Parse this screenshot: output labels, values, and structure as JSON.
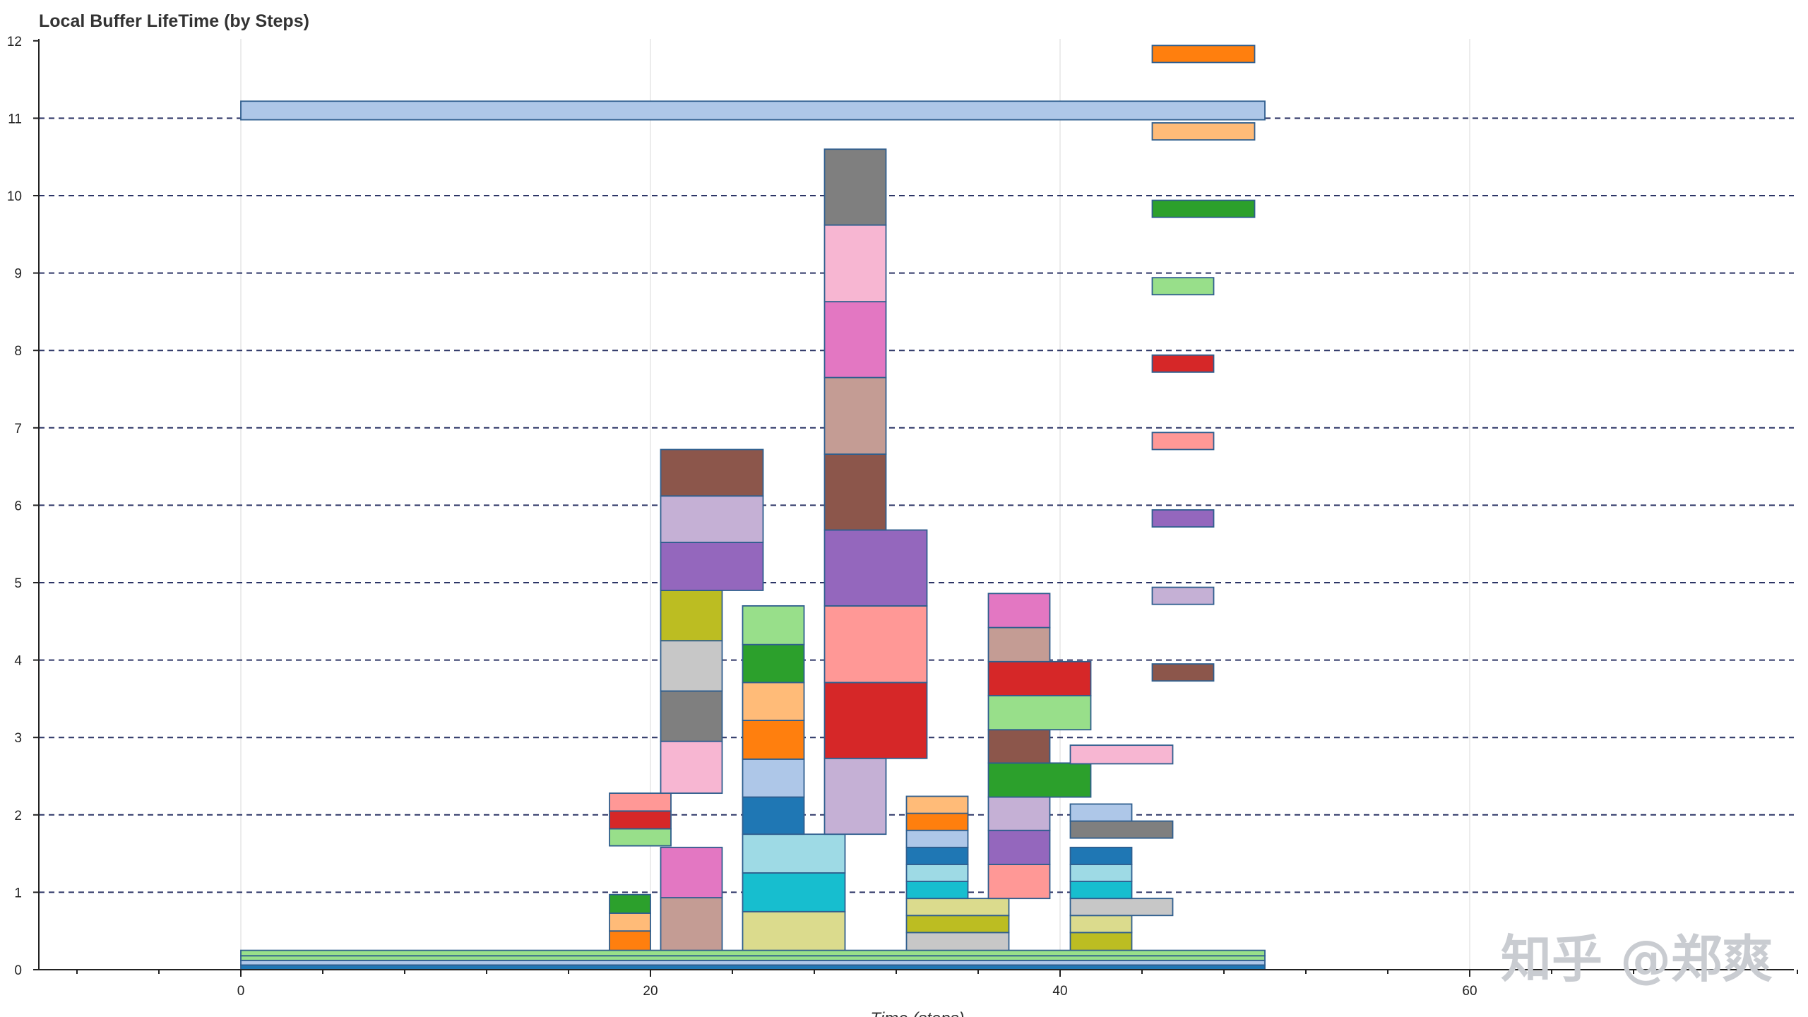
{
  "chart_data": {
    "type": "bar",
    "orientation": "horizontal-intervals",
    "title": "Local Buffer LifeTime (by Steps)",
    "xlabel": "Time (steps)",
    "ylabel": "",
    "xlim": [
      -10,
      76
    ],
    "ylim": [
      0,
      12
    ],
    "x_ticks": [
      0,
      20,
      40,
      60
    ],
    "y_ticks": [
      0,
      1,
      2,
      3,
      4,
      5,
      6,
      7,
      8,
      9,
      10,
      11,
      12
    ],
    "grid": {
      "horizontal": "dashed",
      "vertical": "solid-light"
    },
    "legend": "none",
    "watermark": "知乎 @郑爽",
    "palette": {
      "blue": "#1f77b4",
      "lightblue": "#aec7e8",
      "orange": "#ff7f0e",
      "lightorange": "#ffbb78",
      "green": "#2ca02c",
      "lightgreen": "#98df8a",
      "red": "#d62728",
      "pink": "#ff9896",
      "purple": "#9467bd",
      "lavender": "#c5b0d5",
      "brown": "#8c564b",
      "tan": "#c49c94",
      "magenta": "#e377c2",
      "lightmagenta": "#f7b6d2",
      "gray": "#7f7f7f",
      "lightgray": "#c7c7c7",
      "olive": "#bcbd22",
      "khaki": "#dbdb8d",
      "cyan": "#17becf",
      "lightcyan": "#9edae5"
    },
    "buffers": [
      {
        "x0": 0,
        "x1": 50,
        "y0": 0,
        "y1": 0.06,
        "color": "blue"
      },
      {
        "x0": 0,
        "x1": 50,
        "y0": 0.06,
        "y1": 0.12,
        "color": "lightblue"
      },
      {
        "x0": 0,
        "x1": 50,
        "y0": 0.12,
        "y1": 0.18,
        "color": "lightgreen"
      },
      {
        "x0": 0,
        "x1": 50,
        "y0": 0.18,
        "y1": 0.25,
        "color": "lightgreen"
      },
      {
        "x0": 18,
        "x1": 20,
        "y0": 0.25,
        "y1": 0.5,
        "color": "orange"
      },
      {
        "x0": 18,
        "x1": 20,
        "y0": 0.5,
        "y1": 0.73,
        "color": "lightorange"
      },
      {
        "x0": 18,
        "x1": 20,
        "y0": 0.73,
        "y1": 0.97,
        "color": "green"
      },
      {
        "x0": 18,
        "x1": 21,
        "y0": 1.6,
        "y1": 1.82,
        "color": "lightgreen"
      },
      {
        "x0": 18,
        "x1": 21,
        "y0": 1.82,
        "y1": 2.05,
        "color": "red"
      },
      {
        "x0": 18,
        "x1": 21,
        "y0": 2.05,
        "y1": 2.28,
        "color": "pink"
      },
      {
        "x0": 20.5,
        "x1": 23.5,
        "y0": 0.25,
        "y1": 0.93,
        "color": "tan"
      },
      {
        "x0": 20.5,
        "x1": 23.5,
        "y0": 0.93,
        "y1": 1.58,
        "color": "magenta"
      },
      {
        "x0": 20.5,
        "x1": 23.5,
        "y0": 2.28,
        "y1": 2.95,
        "color": "lightmagenta"
      },
      {
        "x0": 20.5,
        "x1": 23.5,
        "y0": 2.95,
        "y1": 3.6,
        "color": "gray"
      },
      {
        "x0": 20.5,
        "x1": 23.5,
        "y0": 3.6,
        "y1": 4.25,
        "color": "lightgray"
      },
      {
        "x0": 20.5,
        "x1": 23.5,
        "y0": 4.25,
        "y1": 4.9,
        "color": "olive"
      },
      {
        "x0": 20.5,
        "x1": 25.5,
        "y0": 4.9,
        "y1": 5.52,
        "color": "purple"
      },
      {
        "x0": 20.5,
        "x1": 25.5,
        "y0": 5.52,
        "y1": 6.12,
        "color": "lavender"
      },
      {
        "x0": 20.5,
        "x1": 25.5,
        "y0": 6.12,
        "y1": 6.72,
        "color": "brown"
      },
      {
        "x0": 24.5,
        "x1": 29.5,
        "y0": 0.25,
        "y1": 0.75,
        "color": "khaki"
      },
      {
        "x0": 24.5,
        "x1": 29.5,
        "y0": 0.75,
        "y1": 1.25,
        "color": "cyan"
      },
      {
        "x0": 24.5,
        "x1": 29.5,
        "y0": 1.25,
        "y1": 1.75,
        "color": "lightcyan"
      },
      {
        "x0": 24.5,
        "x1": 27.5,
        "y0": 1.75,
        "y1": 2.23,
        "color": "blue"
      },
      {
        "x0": 24.5,
        "x1": 27.5,
        "y0": 2.23,
        "y1": 2.72,
        "color": "lightblue"
      },
      {
        "x0": 24.5,
        "x1": 27.5,
        "y0": 2.72,
        "y1": 3.22,
        "color": "orange"
      },
      {
        "x0": 24.5,
        "x1": 27.5,
        "y0": 3.22,
        "y1": 3.71,
        "color": "lightorange"
      },
      {
        "x0": 24.5,
        "x1": 27.5,
        "y0": 3.71,
        "y1": 4.2,
        "color": "green"
      },
      {
        "x0": 24.5,
        "x1": 27.5,
        "y0": 4.2,
        "y1": 4.7,
        "color": "lightgreen"
      },
      {
        "x0": 28.5,
        "x1": 31.5,
        "y0": 1.75,
        "y1": 2.73,
        "color": "lavender"
      },
      {
        "x0": 28.5,
        "x1": 33.5,
        "y0": 2.73,
        "y1": 3.71,
        "color": "red"
      },
      {
        "x0": 28.5,
        "x1": 33.5,
        "y0": 3.71,
        "y1": 4.7,
        "color": "pink"
      },
      {
        "x0": 28.5,
        "x1": 33.5,
        "y0": 4.7,
        "y1": 5.68,
        "color": "purple"
      },
      {
        "x0": 28.5,
        "x1": 31.5,
        "y0": 5.68,
        "y1": 6.66,
        "color": "brown"
      },
      {
        "x0": 28.5,
        "x1": 31.5,
        "y0": 6.66,
        "y1": 7.65,
        "color": "tan"
      },
      {
        "x0": 28.5,
        "x1": 31.5,
        "y0": 7.65,
        "y1": 8.63,
        "color": "magenta"
      },
      {
        "x0": 28.5,
        "x1": 31.5,
        "y0": 8.63,
        "y1": 9.62,
        "color": "lightmagenta"
      },
      {
        "x0": 28.5,
        "x1": 31.5,
        "y0": 9.62,
        "y1": 10.6,
        "color": "gray"
      },
      {
        "x0": 32.5,
        "x1": 37.5,
        "y0": 0.25,
        "y1": 0.48,
        "color": "lightgray"
      },
      {
        "x0": 32.5,
        "x1": 37.5,
        "y0": 0.48,
        "y1": 0.7,
        "color": "olive"
      },
      {
        "x0": 32.5,
        "x1": 37.5,
        "y0": 0.7,
        "y1": 0.92,
        "color": "khaki"
      },
      {
        "x0": 32.5,
        "x1": 35.5,
        "y0": 0.92,
        "y1": 1.14,
        "color": "cyan"
      },
      {
        "x0": 32.5,
        "x1": 35.5,
        "y0": 1.14,
        "y1": 1.36,
        "color": "lightcyan"
      },
      {
        "x0": 32.5,
        "x1": 35.5,
        "y0": 1.36,
        "y1": 1.58,
        "color": "blue"
      },
      {
        "x0": 32.5,
        "x1": 35.5,
        "y0": 1.58,
        "y1": 1.8,
        "color": "lightblue"
      },
      {
        "x0": 32.5,
        "x1": 35.5,
        "y0": 1.8,
        "y1": 2.02,
        "color": "orange"
      },
      {
        "x0": 32.5,
        "x1": 35.5,
        "y0": 2.02,
        "y1": 2.24,
        "color": "lightorange"
      },
      {
        "x0": 36.5,
        "x1": 39.5,
        "y0": 0.92,
        "y1": 1.36,
        "color": "pink"
      },
      {
        "x0": 36.5,
        "x1": 39.5,
        "y0": 1.36,
        "y1": 1.8,
        "color": "purple"
      },
      {
        "x0": 36.5,
        "x1": 39.5,
        "y0": 1.8,
        "y1": 2.23,
        "color": "lavender"
      },
      {
        "x0": 36.5,
        "x1": 41.5,
        "y0": 2.23,
        "y1": 2.67,
        "color": "green"
      },
      {
        "x0": 36.5,
        "x1": 39.5,
        "y0": 2.67,
        "y1": 3.1,
        "color": "brown"
      },
      {
        "x0": 36.5,
        "x1": 41.5,
        "y0": 3.1,
        "y1": 3.54,
        "color": "lightgreen"
      },
      {
        "x0": 36.5,
        "x1": 41.5,
        "y0": 3.54,
        "y1": 3.98,
        "color": "red"
      },
      {
        "x0": 36.5,
        "x1": 39.5,
        "y0": 3.98,
        "y1": 4.42,
        "color": "tan"
      },
      {
        "x0": 36.5,
        "x1": 39.5,
        "y0": 4.42,
        "y1": 4.86,
        "color": "magenta"
      },
      {
        "x0": 40.5,
        "x1": 43.5,
        "y0": 0.25,
        "y1": 0.48,
        "color": "olive"
      },
      {
        "x0": 40.5,
        "x1": 43.5,
        "y0": 0.48,
        "y1": 0.7,
        "color": "khaki"
      },
      {
        "x0": 40.5,
        "x1": 45.5,
        "y0": 0.7,
        "y1": 0.92,
        "color": "lightgray"
      },
      {
        "x0": 40.5,
        "x1": 43.5,
        "y0": 0.92,
        "y1": 1.14,
        "color": "cyan"
      },
      {
        "x0": 40.5,
        "x1": 43.5,
        "y0": 1.14,
        "y1": 1.36,
        "color": "lightcyan"
      },
      {
        "x0": 40.5,
        "x1": 43.5,
        "y0": 1.36,
        "y1": 1.58,
        "color": "blue"
      },
      {
        "x0": 40.5,
        "x1": 45.5,
        "y0": 1.7,
        "y1": 1.92,
        "color": "gray"
      },
      {
        "x0": 40.5,
        "x1": 43.5,
        "y0": 1.92,
        "y1": 2.14,
        "color": "lightblue"
      },
      {
        "x0": 40.5,
        "x1": 45.5,
        "y0": 2.9,
        "y1": 2.66,
        "color": "lightmagenta"
      },
      {
        "x0": 44.5,
        "x1": 47.5,
        "y0": 3.73,
        "y1": 3.95,
        "color": "brown"
      },
      {
        "x0": 44.5,
        "x1": 47.5,
        "y0": 4.72,
        "y1": 4.94,
        "color": "lavender"
      },
      {
        "x0": 44.5,
        "x1": 47.5,
        "y0": 5.72,
        "y1": 5.94,
        "color": "purple"
      },
      {
        "x0": 44.5,
        "x1": 47.5,
        "y0": 6.72,
        "y1": 6.94,
        "color": "pink"
      },
      {
        "x0": 44.5,
        "x1": 47.5,
        "y0": 7.72,
        "y1": 7.94,
        "color": "red"
      },
      {
        "x0": 44.5,
        "x1": 47.5,
        "y0": 8.72,
        "y1": 8.94,
        "color": "lightgreen"
      },
      {
        "x0": 44.5,
        "x1": 49.5,
        "y0": 9.72,
        "y1": 9.94,
        "color": "green"
      },
      {
        "x0": 44.5,
        "x1": 49.5,
        "y0": 10.72,
        "y1": 10.94,
        "color": "lightorange"
      },
      {
        "x0": 44.5,
        "x1": 49.5,
        "y0": 11.72,
        "y1": 11.94,
        "color": "orange"
      },
      {
        "x0": 0,
        "x1": 50,
        "y0": 10.98,
        "y1": 11.22,
        "color": "lightblue"
      }
    ]
  }
}
